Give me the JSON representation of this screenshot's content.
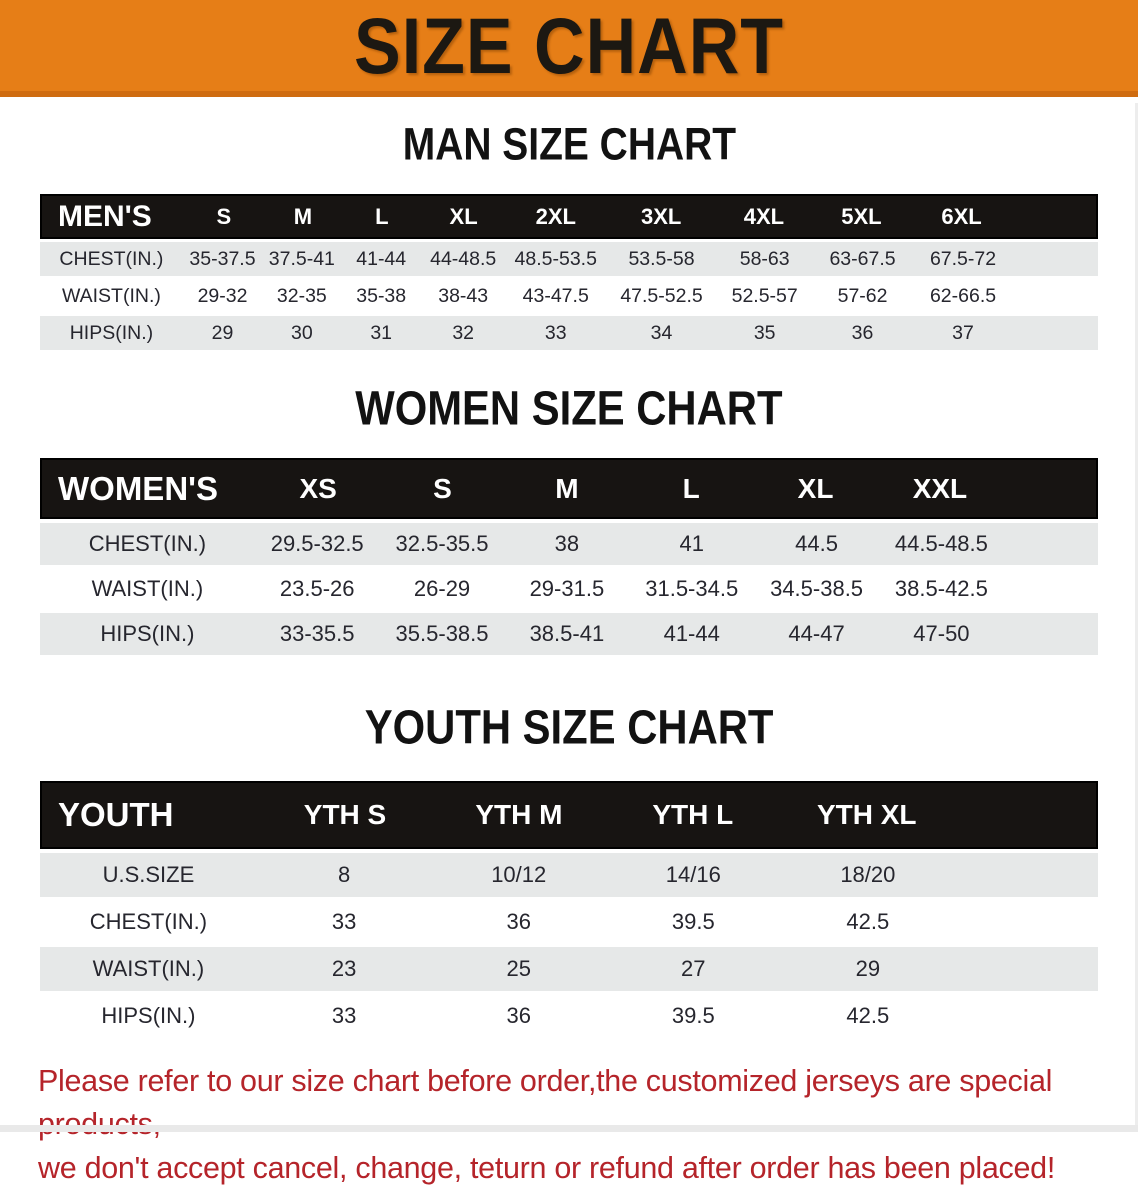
{
  "banner": {
    "title": "SIZE CHART",
    "bg_color": "#e67e17",
    "text_color": "#1c1812"
  },
  "colors": {
    "header_bar": "#171412",
    "stripe_row": "#e6e8e8",
    "note_red": "#b5242a"
  },
  "men": {
    "heading": "MAN SIZE CHART",
    "table": {
      "label": "MEN'S",
      "columns": [
        "S",
        "M",
        "L",
        "XL",
        "2XL",
        "3XL",
        "4XL",
        "5XL",
        "6XL"
      ],
      "rows": [
        {
          "label": "CHEST(IN.)",
          "values": [
            "35-37.5",
            "37.5-41",
            "41-44",
            "44-48.5",
            "48.5-53.5",
            "53.5-58",
            "58-63",
            "63-67.5",
            "67.5-72"
          ]
        },
        {
          "label": "WAIST(IN.)",
          "values": [
            "29-32",
            "32-35",
            "35-38",
            "38-43",
            "43-47.5",
            "47.5-52.5",
            "52.5-57",
            "57-62",
            "62-66.5"
          ]
        },
        {
          "label": "HIPS(IN.)",
          "values": [
            "29",
            "30",
            "31",
            "32",
            "33",
            "34",
            "35",
            "36",
            "37"
          ]
        }
      ]
    }
  },
  "women": {
    "heading": "WOMEN SIZE CHART",
    "table": {
      "label": "WOMEN'S",
      "columns": [
        "XS",
        "S",
        "M",
        "L",
        "XL",
        "XXL"
      ],
      "rows": [
        {
          "label": "CHEST(IN.)",
          "values": [
            "29.5-32.5",
            "32.5-35.5",
            "38",
            "41",
            "44.5",
            "44.5-48.5"
          ]
        },
        {
          "label": "WAIST(IN.)",
          "values": [
            "23.5-26",
            "26-29",
            "29-31.5",
            "31.5-34.5",
            "34.5-38.5",
            "38.5-42.5"
          ]
        },
        {
          "label": "HIPS(IN.)",
          "values": [
            "33-35.5",
            "35.5-38.5",
            "38.5-41",
            "41-44",
            "44-47",
            "47-50"
          ]
        }
      ]
    }
  },
  "youth": {
    "heading": "YOUTH SIZE CHART",
    "table": {
      "label": "YOUTH",
      "columns": [
        "YTH S",
        "YTH M",
        "YTH L",
        "YTH XL"
      ],
      "rows": [
        {
          "label": "U.S.SIZE",
          "values": [
            "8",
            "10/12",
            "14/16",
            "18/20"
          ]
        },
        {
          "label": "CHEST(IN.)",
          "values": [
            "33",
            "36",
            "39.5",
            "42.5"
          ]
        },
        {
          "label": "WAIST(IN.)",
          "values": [
            "23",
            "25",
            "27",
            "29"
          ]
        },
        {
          "label": "HIPS(IN.)",
          "values": [
            "33",
            "36",
            "39.5",
            "42.5"
          ]
        }
      ]
    }
  },
  "footer": {
    "line1": "Please refer to our size chart before order,the customized jerseys are special products,",
    "line2": "we don't accept cancel, change, teturn or refund after order has been placed!"
  }
}
